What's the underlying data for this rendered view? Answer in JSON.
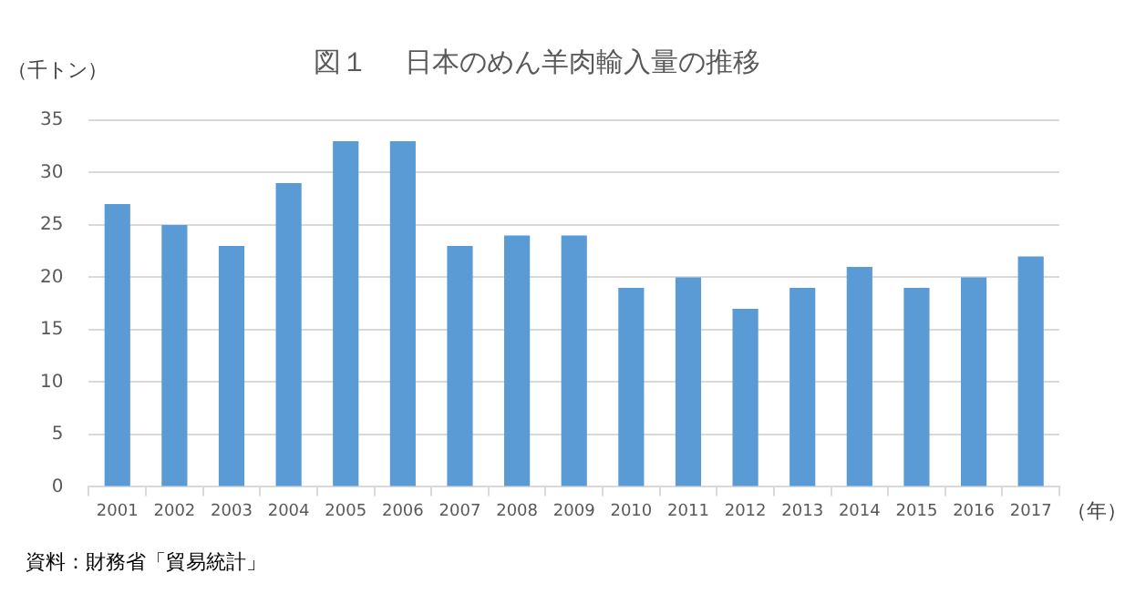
{
  "chart_data": {
    "type": "bar",
    "title": "図１　 日本のめん羊肉輸入量の推移",
    "ylabel": "（千トン）",
    "xlabel": "（年）",
    "annotations": [
      "資料：財務省「貿易統計」"
    ],
    "categories": [
      "2001",
      "2002",
      "2003",
      "2004",
      "2005",
      "2006",
      "2007",
      "2008",
      "2009",
      "2010",
      "2011",
      "2012",
      "2013",
      "2014",
      "2015",
      "2016",
      "2017"
    ],
    "values": [
      27,
      25,
      23,
      29,
      33,
      33,
      23,
      24,
      24,
      19,
      20,
      17,
      19,
      21,
      19,
      20,
      22
    ],
    "color": "#5b9bd5",
    "ylim": [
      0,
      35
    ],
    "yticks": [
      0,
      5,
      10,
      15,
      20,
      25,
      30,
      35
    ],
    "grid": "y",
    "legend": false
  }
}
